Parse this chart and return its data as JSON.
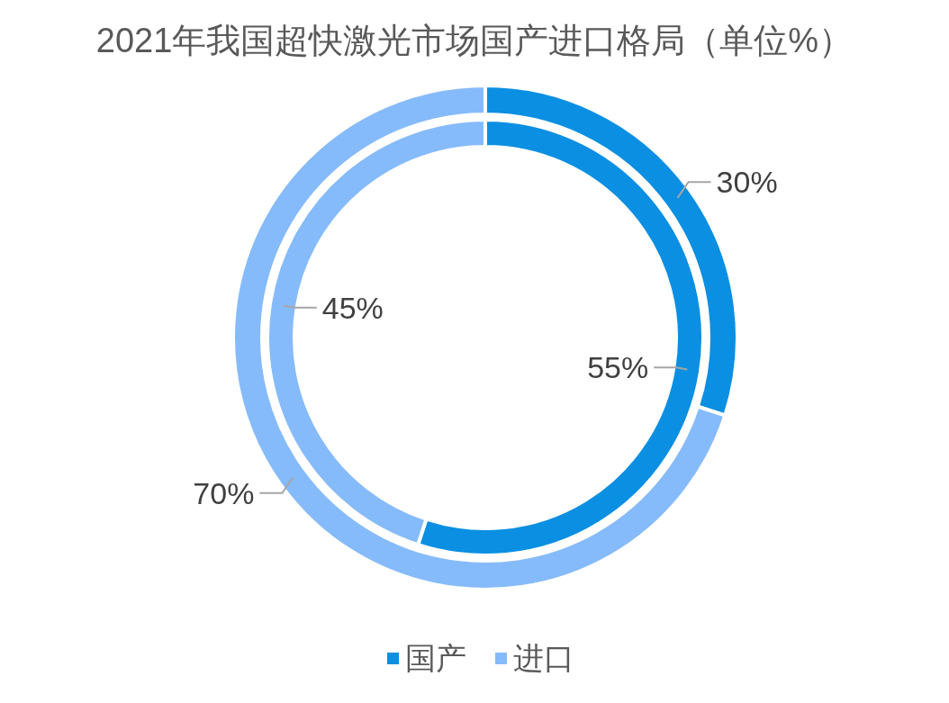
{
  "chart_data": {
    "type": "donut",
    "title": "2021年我国超快激光市场国产进口格局（单位%）",
    "categories": [
      "国产",
      "进口"
    ],
    "colors": [
      "#0a8fe2",
      "#86bbfb"
    ],
    "series": [
      {
        "values": [
          30,
          70
        ],
        "value_labels": [
          "30%",
          "70%"
        ]
      },
      {
        "values": [
          55,
          45
        ],
        "value_labels": [
          "55%",
          "45%"
        ]
      }
    ],
    "legend": "bottom"
  }
}
